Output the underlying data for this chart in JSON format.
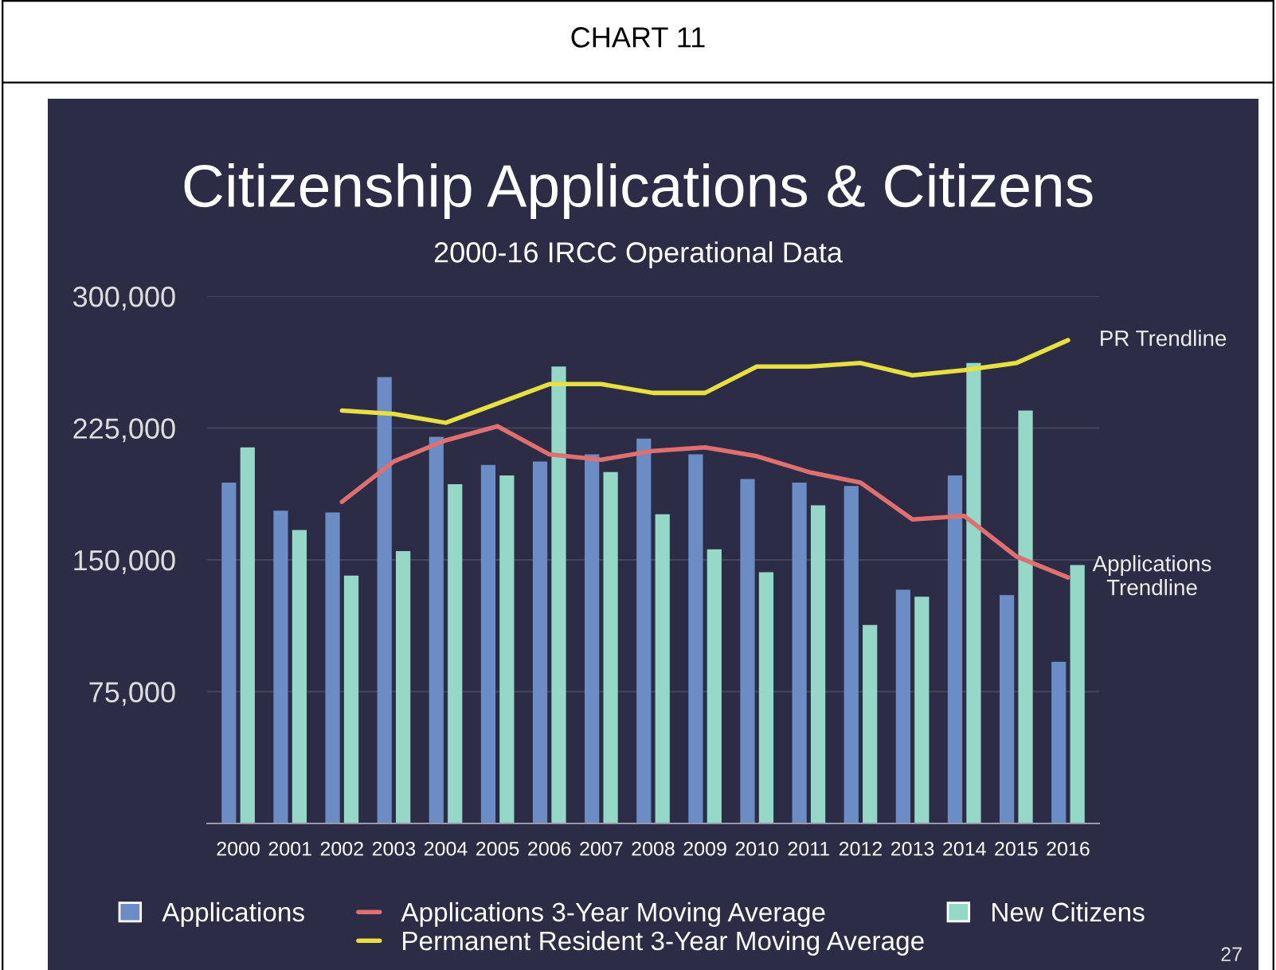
{
  "chart_data": {
    "type": "bar",
    "title": "Citizenship Applications & Citizens",
    "subtitle": "2000-16 IRCC Operational Data",
    "categories": [
      "2000",
      "2001",
      "2002",
      "2003",
      "2004",
      "2005",
      "2006",
      "2007",
      "2008",
      "2009",
      "2010",
      "2011",
      "2012",
      "2013",
      "2014",
      "2015",
      "2016"
    ],
    "series": [
      {
        "name": "Applications",
        "color": "#6b8cc4",
        "values": [
          194000,
          178000,
          177000,
          254000,
          220000,
          204000,
          206000,
          210000,
          219000,
          210000,
          196000,
          194000,
          192000,
          133000,
          198000,
          130000,
          92000
        ]
      },
      {
        "name": "New Citizens",
        "color": "#96d8c8",
        "values": [
          214000,
          167000,
          141000,
          155000,
          193000,
          198000,
          260000,
          200000,
          176000,
          156000,
          143000,
          181000,
          113000,
          129000,
          262000,
          235000,
          147000
        ]
      },
      {
        "name": "Applications 3-Year Moving Average",
        "type": "line",
        "color": "#e07070",
        "values": [
          null,
          null,
          183000,
          206000,
          218000,
          226000,
          210000,
          207000,
          212000,
          214000,
          209000,
          200000,
          194000,
          173000,
          175000,
          152000,
          140000
        ]
      },
      {
        "name": "Permanent Resident 3-Year Moving Average",
        "type": "line",
        "color": "#e8e040",
        "values": [
          null,
          null,
          235000,
          233000,
          228000,
          239000,
          250000,
          250000,
          245000,
          245000,
          260000,
          260000,
          262000,
          255000,
          258000,
          262000,
          275000
        ]
      }
    ],
    "ylim": [
      0,
      300000
    ],
    "yticks": [
      {
        "value": 75000,
        "label": "75,000"
      },
      {
        "value": 150000,
        "label": "150,000"
      },
      {
        "value": 225000,
        "label": "225,000"
      },
      {
        "value": 300000,
        "label": "300,000"
      }
    ],
    "grid": "y",
    "legend": "bottom",
    "annotations": [
      "CHART 11",
      {
        "text": "PR Trendline",
        "x": "2016",
        "y": 275000
      },
      {
        "text": "Applications\nTrendline",
        "x": "2016",
        "y": 140000
      },
      "27"
    ]
  }
}
